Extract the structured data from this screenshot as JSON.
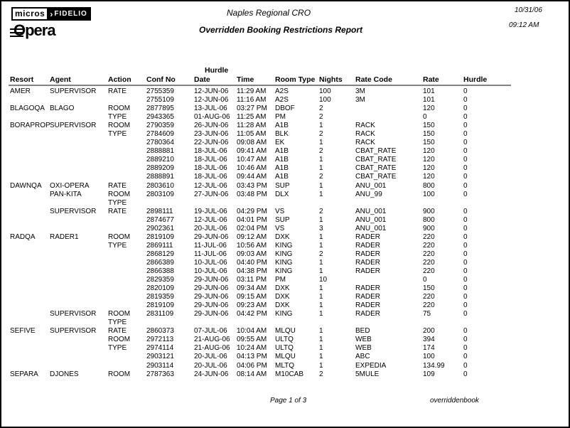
{
  "page": {
    "center_title": "Naples Regional CRO",
    "report_title": "Overridden Booking Restrictions Report",
    "date": "10/31/06",
    "time": "09:12 AM",
    "footer_page": "Page 1 of 3",
    "footer_report_id": "overriddenbook"
  },
  "logo": {
    "micros": "micros",
    "fidelio": "FIDELIO",
    "opera": "Opera"
  },
  "table": {
    "headers": {
      "hurdle_top": "Hurdle",
      "resort": "Resort",
      "agent": "Agent",
      "action": "Action",
      "conf": "Conf No",
      "date": "Date",
      "time": "Time",
      "room": "Room Type",
      "nights": "Nights",
      "rate_code": "Rate Code",
      "rate": "Rate",
      "hurdle": "Hurdle"
    },
    "rows": [
      {
        "resort": "AMER",
        "agent": "SUPERVISOR",
        "action": "RATE",
        "conf": "2755359",
        "date": "12-JUN-06",
        "time": "11:29 AM",
        "room": "A2S",
        "nights": "100",
        "rate_code": "3M",
        "rate": "101",
        "hurdle": "0"
      },
      {
        "conf": "2755109",
        "date": "12-JUN-06",
        "time": "11:16 AM",
        "room": "A2S",
        "nights": "100",
        "rate_code": "3M",
        "rate": "101",
        "hurdle": "0"
      },
      {
        "resort": "BLAGOQA",
        "agent": "BLAGO",
        "action": "ROOM",
        "conf": "2877895",
        "date": "13-JUL-06",
        "time": "03:27 PM",
        "room": "DBOF",
        "nights": "2",
        "rate": "120",
        "hurdle": "0"
      },
      {
        "action": "TYPE",
        "conf": "2943365",
        "date": "01-AUG-06",
        "time": "11:25 AM",
        "room": "PM",
        "nights": "2",
        "rate": "0",
        "hurdle": "0"
      },
      {
        "resort": "BORAPROP",
        "agent": "SUPERVISOR",
        "action": "ROOM",
        "conf": "2790359",
        "date": "26-JUN-06",
        "time": "11:28 AM",
        "room": "A1B",
        "nights": "1",
        "rate_code": "RACK",
        "rate": "150",
        "hurdle": "0"
      },
      {
        "action": "TYPE",
        "conf": "2784609",
        "date": "23-JUN-06",
        "time": "11:05 AM",
        "room": "BLK",
        "nights": "2",
        "rate_code": "RACK",
        "rate": "150",
        "hurdle": "0"
      },
      {
        "conf": "2780364",
        "date": "22-JUN-06",
        "time": "09:08 AM",
        "room": "EK",
        "nights": "1",
        "rate_code": "RACK",
        "rate": "150",
        "hurdle": "0"
      },
      {
        "conf": "2888881",
        "date": "18-JUL-06",
        "time": "09:41 AM",
        "room": "A1B",
        "nights": "2",
        "rate_code": "CBAT_RATE",
        "rate": "120",
        "hurdle": "0"
      },
      {
        "conf": "2889210",
        "date": "18-JUL-06",
        "time": "10:47 AM",
        "room": "A1B",
        "nights": "1",
        "rate_code": "CBAT_RATE",
        "rate": "120",
        "hurdle": "0"
      },
      {
        "conf": "2889209",
        "date": "18-JUL-06",
        "time": "10:46 AM",
        "room": "A1B",
        "nights": "1",
        "rate_code": "CBAT_RATE",
        "rate": "120",
        "hurdle": "0"
      },
      {
        "conf": "2888891",
        "date": "18-JUL-06",
        "time": "09:44 AM",
        "room": "A1B",
        "nights": "2",
        "rate_code": "CBAT_RATE",
        "rate": "120",
        "hurdle": "0"
      },
      {
        "resort": "DAWNQA",
        "agent": "OXI-OPERA",
        "action": "RATE",
        "conf": "2803610",
        "date": "12-JUL-06",
        "time": "03:43 PM",
        "room": "SUP",
        "nights": "1",
        "rate_code": "ANU_001",
        "rate": "800",
        "hurdle": "0"
      },
      {
        "agent": "PAN-KITA",
        "action": "ROOM",
        "conf": "2803109",
        "date": "27-JUN-06",
        "time": "03:48 PM",
        "room": "DLX",
        "nights": "1",
        "rate_code": "ANU_99",
        "rate": "100",
        "hurdle": "0"
      },
      {
        "action": "TYPE"
      },
      {
        "agent": "SUPERVISOR",
        "action": "RATE",
        "conf": "2898111",
        "date": "19-JUL-06",
        "time": "04:29 PM",
        "room": "VS",
        "nights": "2",
        "rate_code": "ANU_001",
        "rate": "900",
        "hurdle": "0"
      },
      {
        "conf": "2874677",
        "date": "12-JUL-06",
        "time": "04:01 PM",
        "room": "SUP",
        "nights": "1",
        "rate_code": "ANU_001",
        "rate": "800",
        "hurdle": "0"
      },
      {
        "conf": "2902361",
        "date": "20-JUL-06",
        "time": "02:04 PM",
        "room": "VS",
        "nights": "3",
        "rate_code": "ANU_001",
        "rate": "900",
        "hurdle": "0"
      },
      {
        "resort": "RADQA",
        "agent": "RADER1",
        "action": "ROOM",
        "conf": "2819109",
        "date": "29-JUN-06",
        "time": "09:12 AM",
        "room": "DXK",
        "nights": "1",
        "rate_code": "RADER",
        "rate": "220",
        "hurdle": "0"
      },
      {
        "action": "TYPE",
        "conf": "2869111",
        "date": "11-JUL-06",
        "time": "10:56 AM",
        "room": "KING",
        "nights": "1",
        "rate_code": "RADER",
        "rate": "220",
        "hurdle": "0"
      },
      {
        "conf": "2868129",
        "date": "11-JUL-06",
        "time": "09:03 AM",
        "room": "KING",
        "nights": "2",
        "rate_code": "RADER",
        "rate": "220",
        "hurdle": "0"
      },
      {
        "conf": "2866389",
        "date": "10-JUL-06",
        "time": "04:40 PM",
        "room": "KING",
        "nights": "1",
        "rate_code": "RADER",
        "rate": "220",
        "hurdle": "0"
      },
      {
        "conf": "2866388",
        "date": "10-JUL-06",
        "time": "04:38 PM",
        "room": "KING",
        "nights": "1",
        "rate_code": "RADER",
        "rate": "220",
        "hurdle": "0"
      },
      {
        "conf": "2829359",
        "date": "29-JUN-06",
        "time": "03:11 PM",
        "room": "PM",
        "nights": "10",
        "rate": "0",
        "hurdle": "0"
      },
      {
        "conf": "2820109",
        "date": "29-JUN-06",
        "time": "09:34 AM",
        "room": "DXK",
        "nights": "1",
        "rate_code": "RADER",
        "rate": "150",
        "hurdle": "0"
      },
      {
        "conf": "2819359",
        "date": "29-JUN-06",
        "time": "09:15 AM",
        "room": "DXK",
        "nights": "1",
        "rate_code": "RADER",
        "rate": "220",
        "hurdle": "0"
      },
      {
        "conf": "2819109",
        "date": "29-JUN-06",
        "time": "09:23 AM",
        "room": "DXK",
        "nights": "1",
        "rate_code": "RADER",
        "rate": "220",
        "hurdle": "0"
      },
      {
        "agent": "SUPERVISOR",
        "action": "ROOM",
        "conf": "2831109",
        "date": "29-JUN-06",
        "time": "04:42 PM",
        "room": "KING",
        "nights": "1",
        "rate_code": "RADER",
        "rate": "75",
        "hurdle": "0"
      },
      {
        "action": "TYPE"
      },
      {
        "resort": "SEFIVE",
        "agent": "SUPERVISOR",
        "action": "RATE",
        "conf": "2860373",
        "date": "07-JUL-06",
        "time": "10:04 AM",
        "room": "MLQU",
        "nights": "1",
        "rate_code": "BED",
        "rate": "200",
        "hurdle": "0"
      },
      {
        "action": "ROOM",
        "conf": "2972113",
        "date": "21-AUG-06",
        "time": "09:55 AM",
        "room": "ULTQ",
        "nights": "1",
        "rate_code": "WEB",
        "rate": "394",
        "hurdle": "0"
      },
      {
        "action": "TYPE",
        "conf": "2974114",
        "date": "21-AUG-06",
        "time": "10:24 AM",
        "room": "ULTQ",
        "nights": "1",
        "rate_code": "WEB",
        "rate": "174",
        "hurdle": "0"
      },
      {
        "conf": "2903121",
        "date": "20-JUL-06",
        "time": "04:13 PM",
        "room": "MLQU",
        "nights": "1",
        "rate_code": "ABC",
        "rate": "100",
        "hurdle": "0"
      },
      {
        "conf": "2903114",
        "date": "20-JUL-06",
        "time": "04:06 PM",
        "room": "MLTQ",
        "nights": "1",
        "rate_code": "EXPEDIA",
        "rate": "134.99",
        "hurdle": "0"
      },
      {
        "resort": "SEPARA",
        "agent": "DJONES",
        "action": "ROOM",
        "conf": "2787363",
        "date": "24-JUN-06",
        "time": "08:14 AM",
        "room": "M10CAB",
        "nights": "2",
        "rate_code": "5MULE",
        "rate": "109",
        "hurdle": "0"
      }
    ]
  }
}
